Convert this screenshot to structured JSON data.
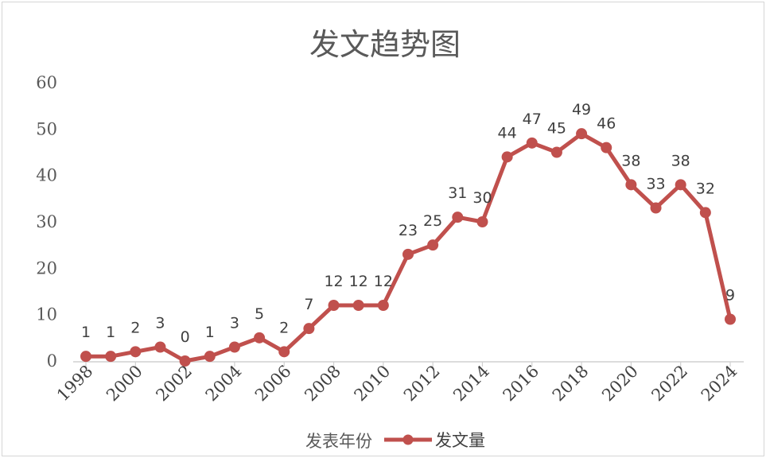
{
  "chart_data": {
    "type": "line",
    "title": "发文趋势图",
    "xlabel": "发表年份",
    "ylabel": "",
    "ylim": [
      0,
      60
    ],
    "yticks": [
      0,
      10,
      20,
      30,
      40,
      50,
      60
    ],
    "x": [
      1998,
      1999,
      2000,
      2001,
      2002,
      2003,
      2004,
      2005,
      2006,
      2007,
      2008,
      2009,
      2010,
      2011,
      2012,
      2013,
      2014,
      2015,
      2016,
      2017,
      2018,
      2019,
      2020,
      2021,
      2022,
      2023,
      2024
    ],
    "x_tick_labels": [
      "1998",
      "2000",
      "2002",
      "2004",
      "2006",
      "2008",
      "2010",
      "2012",
      "2014",
      "2016",
      "2018",
      "2020",
      "2022",
      "2024"
    ],
    "series": [
      {
        "name": "发文量",
        "color": "#c0504d",
        "values": [
          1,
          1,
          2,
          3,
          0,
          1,
          3,
          5,
          2,
          7,
          12,
          12,
          12,
          23,
          25,
          31,
          30,
          44,
          47,
          45,
          49,
          46,
          38,
          33,
          38,
          32,
          9
        ],
        "data_labels": true
      }
    ],
    "grid": false,
    "legend_position": "bottom"
  }
}
